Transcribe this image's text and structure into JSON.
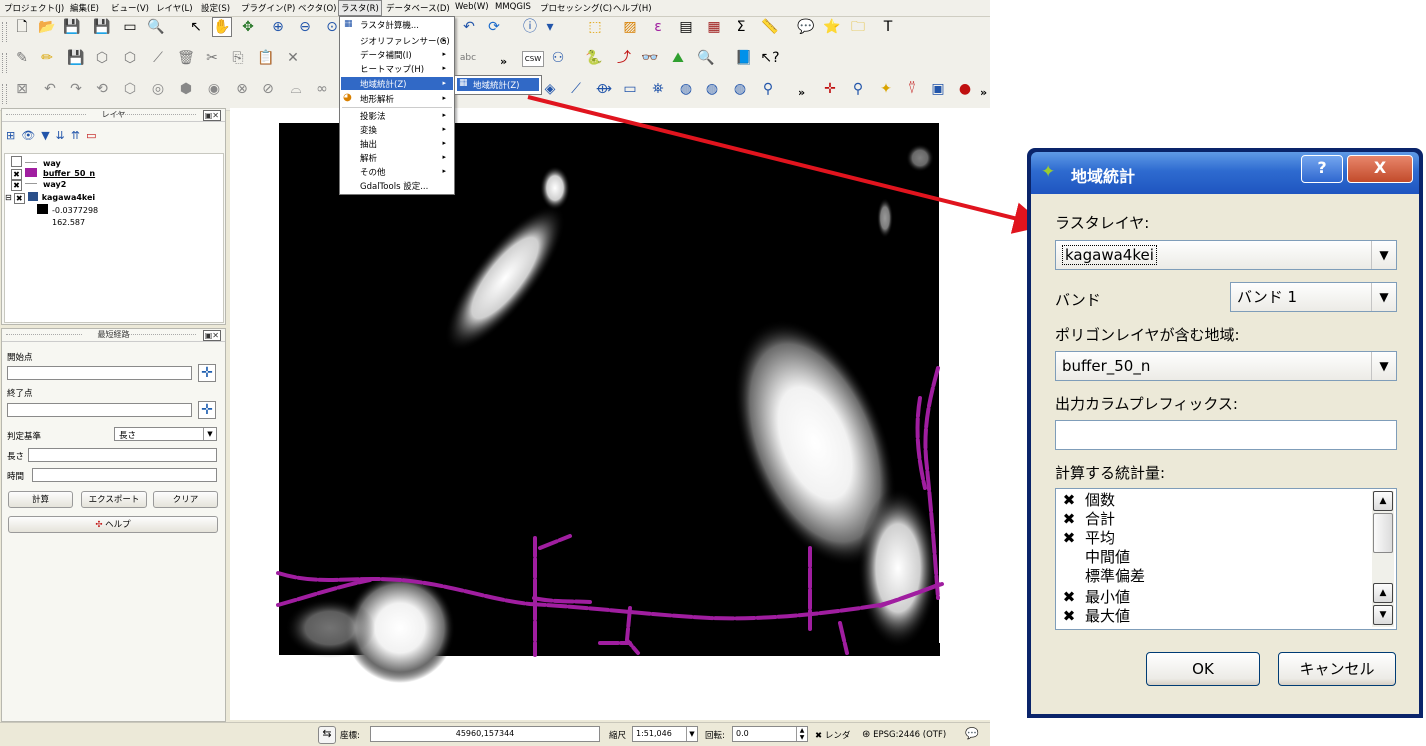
{
  "menubar": {
    "items": [
      "プロジェクト(J)",
      "編集(E)",
      "ビュー(V)",
      "レイヤ(L)",
      "設定(S)",
      "プラグイン(P)",
      "ベクタ(O)",
      "ラスタ(R)",
      "データベース(D)",
      "Web(W)",
      "MMQGIS",
      "プロセッシング(C)",
      "ヘルプ(H)"
    ]
  },
  "toolbar": {
    "overflow": "»",
    "csw_label": "CSW",
    "abc_label": "abc"
  },
  "raster_menu": {
    "items": [
      {
        "label": "ラスタ計算機...",
        "submenu": false
      },
      {
        "label": "ジオリファレンサー(G)",
        "submenu": true
      },
      {
        "label": "データ補間(I)",
        "submenu": true
      },
      {
        "label": "ヒートマップ(H)",
        "submenu": true
      },
      {
        "label": "地域統計(Z)",
        "submenu": true
      },
      {
        "label": "地形解析",
        "submenu": true
      },
      {
        "label": "投影法",
        "submenu": true
      },
      {
        "label": "変換",
        "submenu": true
      },
      {
        "label": "抽出",
        "submenu": true
      },
      {
        "label": "解析",
        "submenu": true
      },
      {
        "label": "その他",
        "submenu": true
      },
      {
        "label": "GdalTools 設定...",
        "submenu": false
      }
    ],
    "submenu_item": "地域統計(Z)"
  },
  "layers_panel": {
    "title": "レイヤ",
    "layers": [
      {
        "name": "way",
        "checked": false
      },
      {
        "name": "buffer_50_n",
        "checked": true
      },
      {
        "name": "way2",
        "checked": true
      },
      {
        "name": "kagawa4kei",
        "checked": true
      }
    ],
    "legend_min": "-0.0377298",
    "legend_max": "162.587"
  },
  "route_panel": {
    "title": "最短経路",
    "start_label": "開始点",
    "end_label": "終了点",
    "criterion_label": "判定基準",
    "criterion_value": "長さ",
    "length_label": "長さ",
    "time_label": "時間",
    "calc_button": "計算",
    "export_button": "エクスポート",
    "clear_button": "クリア",
    "help_button": "ヘルプ"
  },
  "statusbar": {
    "coord_label": "座標:",
    "coord_value": "45960,157344",
    "scale_label": "縮尺",
    "scale_value": "1:51,046",
    "rotation_label": "回転:",
    "rotation_value": "0.0",
    "render_label": "レンダ",
    "crs": "EPSG:2446 (OTF)"
  },
  "dialog": {
    "title": "地域統計",
    "help_btn": "?",
    "close_btn": "X",
    "raster_label": "ラスタレイヤ:",
    "raster_value": "kagawa4kei",
    "band_label": "バンド",
    "band_value": "バンド 1",
    "polygon_label": "ポリゴンレイヤが含む地域:",
    "polygon_value": "buffer_50_n",
    "prefix_label": "出力カラムプレフィックス:",
    "prefix_value": "",
    "stats_label": "計算する統計量:",
    "stats": [
      {
        "label": "個数",
        "checked": true
      },
      {
        "label": "合計",
        "checked": true
      },
      {
        "label": "平均",
        "checked": true
      },
      {
        "label": "中間値",
        "checked": false
      },
      {
        "label": "標準偏差",
        "checked": false
      },
      {
        "label": "最小値",
        "checked": true
      },
      {
        "label": "最大値",
        "checked": true
      }
    ],
    "ok_button": "OK",
    "cancel_button": "キャンセル"
  },
  "colors": {
    "highlight": "#3169c6",
    "route": "#a01ea0",
    "arrow": "#e0141e",
    "buffer_swatch": "#a01ea0"
  }
}
